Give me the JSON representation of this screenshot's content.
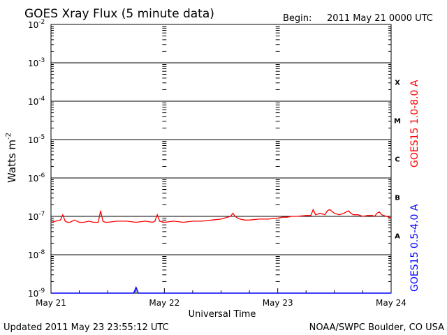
{
  "title": "GOES Xray Flux (5 minute data)",
  "begin_label": "Begin:",
  "begin_value": "2011 May 21 0000 UTC",
  "footer_left": "Updated 2011 May 23 23:55:12 UTC",
  "footer_right": "NOAA/SWPC Boulder, CO USA",
  "chart_data": {
    "type": "line",
    "title": "GOES Xray Flux (5 minute data)",
    "xlabel": "Universal Time",
    "ylabel": "Watts m-2",
    "ylabel_base": "Watts m",
    "ylabel_exp": "-2",
    "x_scale": "time",
    "x_range": [
      "2011-05-21 00:00",
      "2011-05-24 00:00"
    ],
    "x_ticks": [
      "May 21",
      "May 22",
      "May 23",
      "May 24"
    ],
    "y_scale": "log",
    "ylim": [
      1e-09,
      0.01
    ],
    "y_ticks": [
      {
        "base": "10",
        "exp": "-2"
      },
      {
        "base": "10",
        "exp": "-3"
      },
      {
        "base": "10",
        "exp": "-4"
      },
      {
        "base": "10",
        "exp": "-5"
      },
      {
        "base": "10",
        "exp": "-6"
      },
      {
        "base": "10",
        "exp": "-7"
      },
      {
        "base": "10",
        "exp": "-8"
      },
      {
        "base": "10",
        "exp": "-9"
      }
    ],
    "flare_classes": [
      "X",
      "M",
      "C",
      "B",
      "A"
    ],
    "grid": "horizontal lines at each decade",
    "series": [
      {
        "name": "GOES15 1.0-8.0 A",
        "color": "#ff0000",
        "x_hours": [
          0,
          1,
          2,
          2.5,
          3,
          3.5,
          4,
          5,
          6,
          7,
          8,
          9,
          10,
          10.5,
          11,
          11.5,
          12,
          14,
          16,
          18,
          20,
          21.5,
          22,
          22.5,
          23,
          24,
          26,
          28,
          30,
          32,
          34,
          36,
          38,
          38.5,
          39,
          39.5,
          40,
          41,
          42,
          44,
          46,
          48,
          49,
          50,
          51,
          52,
          54,
          55,
          55.5,
          56,
          57,
          58,
          58.5,
          59,
          60,
          61,
          62,
          62.5,
          63,
          63.5,
          64,
          65,
          66,
          67,
          68,
          68.5,
          69,
          69.5,
          70,
          71,
          72
        ],
        "values": [
          7e-08,
          7.5e-08,
          8e-08,
          1.1e-07,
          7.5e-08,
          7e-08,
          7e-08,
          8e-08,
          7e-08,
          7e-08,
          7.5e-08,
          7e-08,
          7e-08,
          1.4e-07,
          7.5e-08,
          7e-08,
          7e-08,
          7.5e-08,
          7.5e-08,
          7e-08,
          7.5e-08,
          7e-08,
          7.5e-08,
          1.1e-07,
          7.5e-08,
          7e-08,
          7.5e-08,
          7e-08,
          7.5e-08,
          7.5e-08,
          8e-08,
          8.5e-08,
          1e-07,
          1.2e-07,
          1e-07,
          9e-08,
          8.5e-08,
          8e-08,
          8e-08,
          8.5e-08,
          8.5e-08,
          9e-08,
          9.5e-08,
          9.5e-08,
          1e-07,
          1e-07,
          1.05e-07,
          1.05e-07,
          1.5e-07,
          1.1e-07,
          1.2e-07,
          1.1e-07,
          1.4e-07,
          1.5e-07,
          1.2e-07,
          1.1e-07,
          1.2e-07,
          1.3e-07,
          1.4e-07,
          1.2e-07,
          1.1e-07,
          1.1e-07,
          1e-07,
          1.05e-07,
          1.05e-07,
          1e-07,
          1.2e-07,
          1.3e-07,
          1.1e-07,
          1e-07,
          9e-08
        ]
      },
      {
        "name": "GOES15 0.5-4.0 A",
        "color": "#0000ff",
        "x_hours": [
          0,
          3,
          6,
          9,
          12,
          15,
          17.5,
          18,
          18.5,
          21,
          24,
          27,
          30,
          33,
          36,
          39,
          40,
          42,
          45,
          48,
          51,
          54,
          57,
          60,
          63,
          66,
          69,
          72
        ],
        "values": [
          1e-09,
          1e-09,
          1e-09,
          1e-09,
          1e-09,
          1e-09,
          1e-09,
          1.4e-09,
          1e-09,
          1e-09,
          1e-09,
          1e-09,
          1e-09,
          1e-09,
          1e-09,
          1e-09,
          1e-09,
          1e-09,
          1e-09,
          1e-09,
          1e-09,
          1e-09,
          1e-09,
          1e-09,
          1e-09,
          1e-09,
          1e-09,
          1e-09
        ]
      }
    ]
  }
}
